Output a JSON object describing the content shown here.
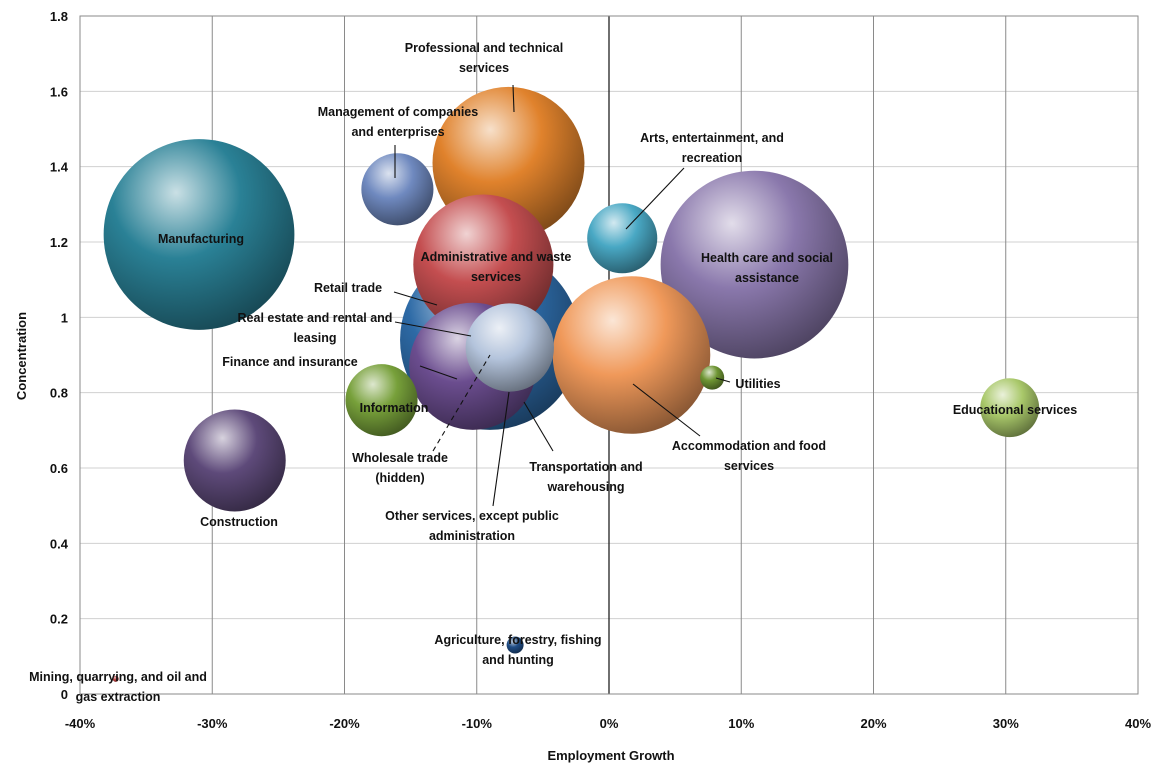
{
  "chart_data": {
    "type": "bubble",
    "xlabel": "Employment Growth",
    "ylabel": "Concentration",
    "xlim": [
      -0.4,
      0.4
    ],
    "ylim": [
      0,
      1.8
    ],
    "x_ticks": [
      {
        "value": -0.4,
        "label": "-40%"
      },
      {
        "value": -0.3,
        "label": "-30%"
      },
      {
        "value": -0.2,
        "label": "-20%"
      },
      {
        "value": -0.1,
        "label": "-10%"
      },
      {
        "value": 0.0,
        "label": "0%"
      },
      {
        "value": 0.1,
        "label": "10%"
      },
      {
        "value": 0.2,
        "label": "20%"
      },
      {
        "value": 0.3,
        "label": "30%"
      },
      {
        "value": 0.4,
        "label": "40%"
      }
    ],
    "y_ticks": [
      {
        "value": 0,
        "label": "0"
      },
      {
        "value": 0.2,
        "label": "0.2"
      },
      {
        "value": 0.4,
        "label": "0.4"
      },
      {
        "value": 0.6,
        "label": "0.6"
      },
      {
        "value": 0.8,
        "label": "0.8"
      },
      {
        "value": 1.0,
        "label": "1"
      },
      {
        "value": 1.2,
        "label": "1.2"
      },
      {
        "value": 1.4,
        "label": "1.4"
      },
      {
        "value": 1.6,
        "label": "1.6"
      },
      {
        "value": 1.8,
        "label": "1.8"
      }
    ],
    "grid": {
      "vertical": true,
      "horizontal": true
    },
    "zero_line_x": 0,
    "series": [
      {
        "name": "Manufacturing",
        "x": -0.31,
        "y": 1.22,
        "size": 6.3,
        "color": "#2a8196"
      },
      {
        "name": "Health care and social assistance",
        "x": 0.11,
        "y": 1.14,
        "size": 6.1,
        "color": "#8a78ac"
      },
      {
        "name": "Retail trade",
        "x": -0.09,
        "y": 0.94,
        "size": 5.6,
        "color": "#2d6aa6"
      },
      {
        "name": "Accommodation and food services",
        "x": 0.017,
        "y": 0.9,
        "size": 4.3,
        "color": "#f0995a"
      },
      {
        "name": "Professional and technical services",
        "x": -0.076,
        "y": 1.41,
        "size": 4.0,
        "color": "#e0822c"
      },
      {
        "name": "Administrative and waste services",
        "x": -0.095,
        "y": 1.14,
        "size": 3.4,
        "color": "#c44e50"
      },
      {
        "name": "Finance and insurance",
        "x": -0.103,
        "y": 0.87,
        "size": 2.8,
        "color": "#6b4d8f"
      },
      {
        "name": "Real estate and rental and leasing",
        "x": -0.075,
        "y": 0.92,
        "size": 1.35,
        "color": "#b4c4dc"
      },
      {
        "name": "Construction",
        "x": -0.283,
        "y": 0.62,
        "size": 1.8,
        "color": "#5e4a7a"
      },
      {
        "name": "Management of companies and enterprises",
        "x": -0.16,
        "y": 1.34,
        "size": 0.9,
        "color": "#6f89bf"
      },
      {
        "name": "Arts, entertainment, and recreation",
        "x": 0.01,
        "y": 1.21,
        "size": 0.85,
        "color": "#49a8c4"
      },
      {
        "name": "Information",
        "x": -0.172,
        "y": 0.78,
        "size": 0.9,
        "color": "#77a03a"
      },
      {
        "name": "Educational services",
        "x": 0.303,
        "y": 0.76,
        "size": 0.6,
        "color": "#a9c86a"
      },
      {
        "name": "Utilities",
        "x": 0.078,
        "y": 0.84,
        "size": 0.1,
        "color": "#6e9533"
      },
      {
        "name": "Agriculture, forestry, fishing and hunting",
        "x": -0.071,
        "y": 0.13,
        "size": 0.05,
        "color": "#1f4d86"
      },
      {
        "name": "Mining, quarrying, and oil and gas extraction",
        "x": -0.373,
        "y": 0.04,
        "size": 0.003,
        "color": "#c04040"
      }
    ],
    "labels": [
      {
        "lines": [
          "Professional and technical",
          "services"
        ]
      },
      {
        "lines": [
          "Management of companies",
          "and enterprises"
        ]
      },
      {
        "lines": [
          "Arts, entertainment, and",
          "recreation"
        ]
      },
      {
        "lines": [
          "Manufacturing"
        ]
      },
      {
        "lines": [
          "Administrative and waste",
          "services"
        ]
      },
      {
        "lines": [
          "Health care and social",
          "assistance"
        ]
      },
      {
        "lines": [
          "Retail trade"
        ]
      },
      {
        "lines": [
          "Real estate and rental and",
          "leasing"
        ]
      },
      {
        "lines": [
          "Finance and insurance"
        ]
      },
      {
        "lines": [
          "Utilities"
        ]
      },
      {
        "lines": [
          "Information"
        ]
      },
      {
        "lines": [
          "Educational services"
        ]
      },
      {
        "lines": [
          "Accommodation and food",
          "services"
        ]
      },
      {
        "lines": [
          "Wholesale trade",
          "(hidden)"
        ]
      },
      {
        "lines": [
          "Transportation and",
          "warehousing"
        ]
      },
      {
        "lines": [
          "Construction"
        ]
      },
      {
        "lines": [
          "Other services, except public",
          "administration"
        ]
      },
      {
        "lines": [
          "Agriculture, forestry, fishing",
          "and hunting"
        ]
      },
      {
        "lines": [
          "Mining, quarrying, and oil and",
          "gas extraction"
        ]
      }
    ]
  }
}
